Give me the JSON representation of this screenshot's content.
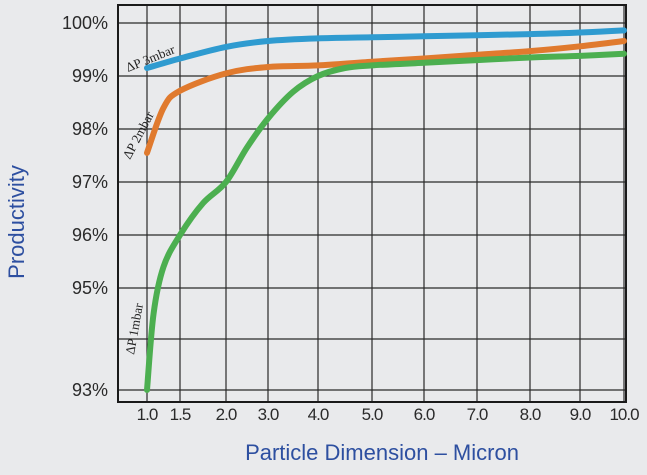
{
  "chart_data": {
    "type": "line",
    "xlabel": "Particle Dimension – Micron",
    "ylabel": "Productivity",
    "x_ticks": [
      "1.0",
      "1.5",
      "2.0",
      "3.0",
      "4.0",
      "5.0",
      "6.0",
      "7.0",
      "8.0",
      "9.0",
      "10.0"
    ],
    "y_ticks": [
      "100%",
      "99%",
      "98%",
      "97%",
      "96%",
      "95%",
      "93%"
    ],
    "grid": true,
    "series": [
      {
        "name": "ΔP 3mbar",
        "color": "#2f9bd0",
        "x": [
          1.0,
          1.5,
          2.0,
          3.0,
          4.0,
          5.0,
          6.0,
          7.0,
          8.0,
          9.0,
          10.0
        ],
        "y": [
          99.15,
          99.33,
          99.55,
          99.66,
          99.71,
          99.73,
          99.75,
          99.77,
          99.79,
          99.82,
          99.86
        ]
      },
      {
        "name": "ΔP 2mbar",
        "color": "#e07a2e",
        "x": [
          1.0,
          1.25,
          1.5,
          2.0,
          3.0,
          4.0,
          5.0,
          6.0,
          7.0,
          8.0,
          9.0,
          10.0
        ],
        "y": [
          97.55,
          98.4,
          98.72,
          99.05,
          99.17,
          99.2,
          99.27,
          99.33,
          99.4,
          99.47,
          99.56,
          99.66
        ]
      },
      {
        "name": "ΔP 1mbar",
        "color": "#4caf50",
        "x": [
          1.0,
          1.1,
          1.25,
          1.5,
          1.75,
          2.0,
          2.5,
          3.0,
          3.5,
          4.0,
          4.5,
          5.0,
          6.0,
          7.0,
          8.0,
          9.0,
          10.0
        ],
        "y": [
          93.0,
          94.5,
          95.4,
          96.0,
          96.6,
          97.0,
          97.65,
          98.2,
          98.7,
          99.0,
          99.15,
          99.2,
          99.25,
          99.3,
          99.35,
          99.38,
          99.42
        ]
      }
    ]
  }
}
